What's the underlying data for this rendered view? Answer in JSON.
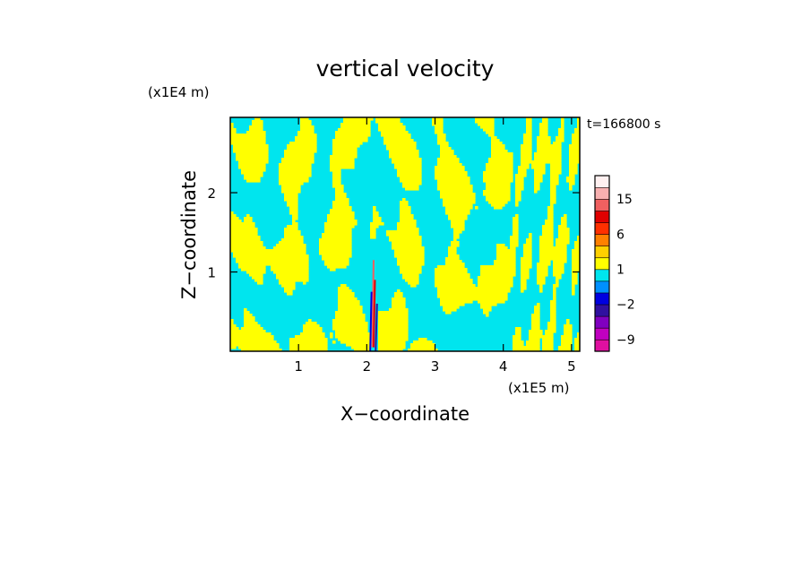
{
  "chart_data": {
    "type": "heatmap",
    "title": "vertical velocity",
    "time_label": "t=166800 s",
    "xlabel": "X−coordinate",
    "ylabel": "Z−coordinate",
    "x_unit": "(x1E5 m)",
    "y_unit": "(x1E4 m)",
    "xlim": [
      0,
      5.12
    ],
    "ylim": [
      0,
      2.95
    ],
    "x_ticks": [
      1,
      2,
      3,
      4,
      5
    ],
    "x_tick_labels": [
      "1",
      "2",
      "3",
      "4",
      "5"
    ],
    "y_ticks": [
      1,
      2
    ],
    "y_tick_labels": [
      "1",
      "2"
    ],
    "field_colors": {
      "positive": "#ffff00",
      "negative": "#00e5ee"
    },
    "colorbar": {
      "levels": [
        -12,
        -9,
        -6,
        -4,
        -2,
        -1,
        0,
        1,
        2,
        4,
        6,
        9,
        12,
        15,
        18,
        21
      ],
      "colors": [
        "#e010a0",
        "#c000c0",
        "#8000c0",
        "#3010a0",
        "#0000e0",
        "#0090ff",
        "#00e5ee",
        "#ffff00",
        "#ffd000",
        "#ff8000",
        "#ff3000",
        "#e00000",
        "#f06060",
        "#f8b0b0",
        "#fff0f0"
      ],
      "tick_values": [
        -9,
        -2,
        1,
        6,
        15
      ],
      "tick_labels": [
        "−9",
        "−2",
        "1",
        "6",
        "15"
      ]
    }
  }
}
